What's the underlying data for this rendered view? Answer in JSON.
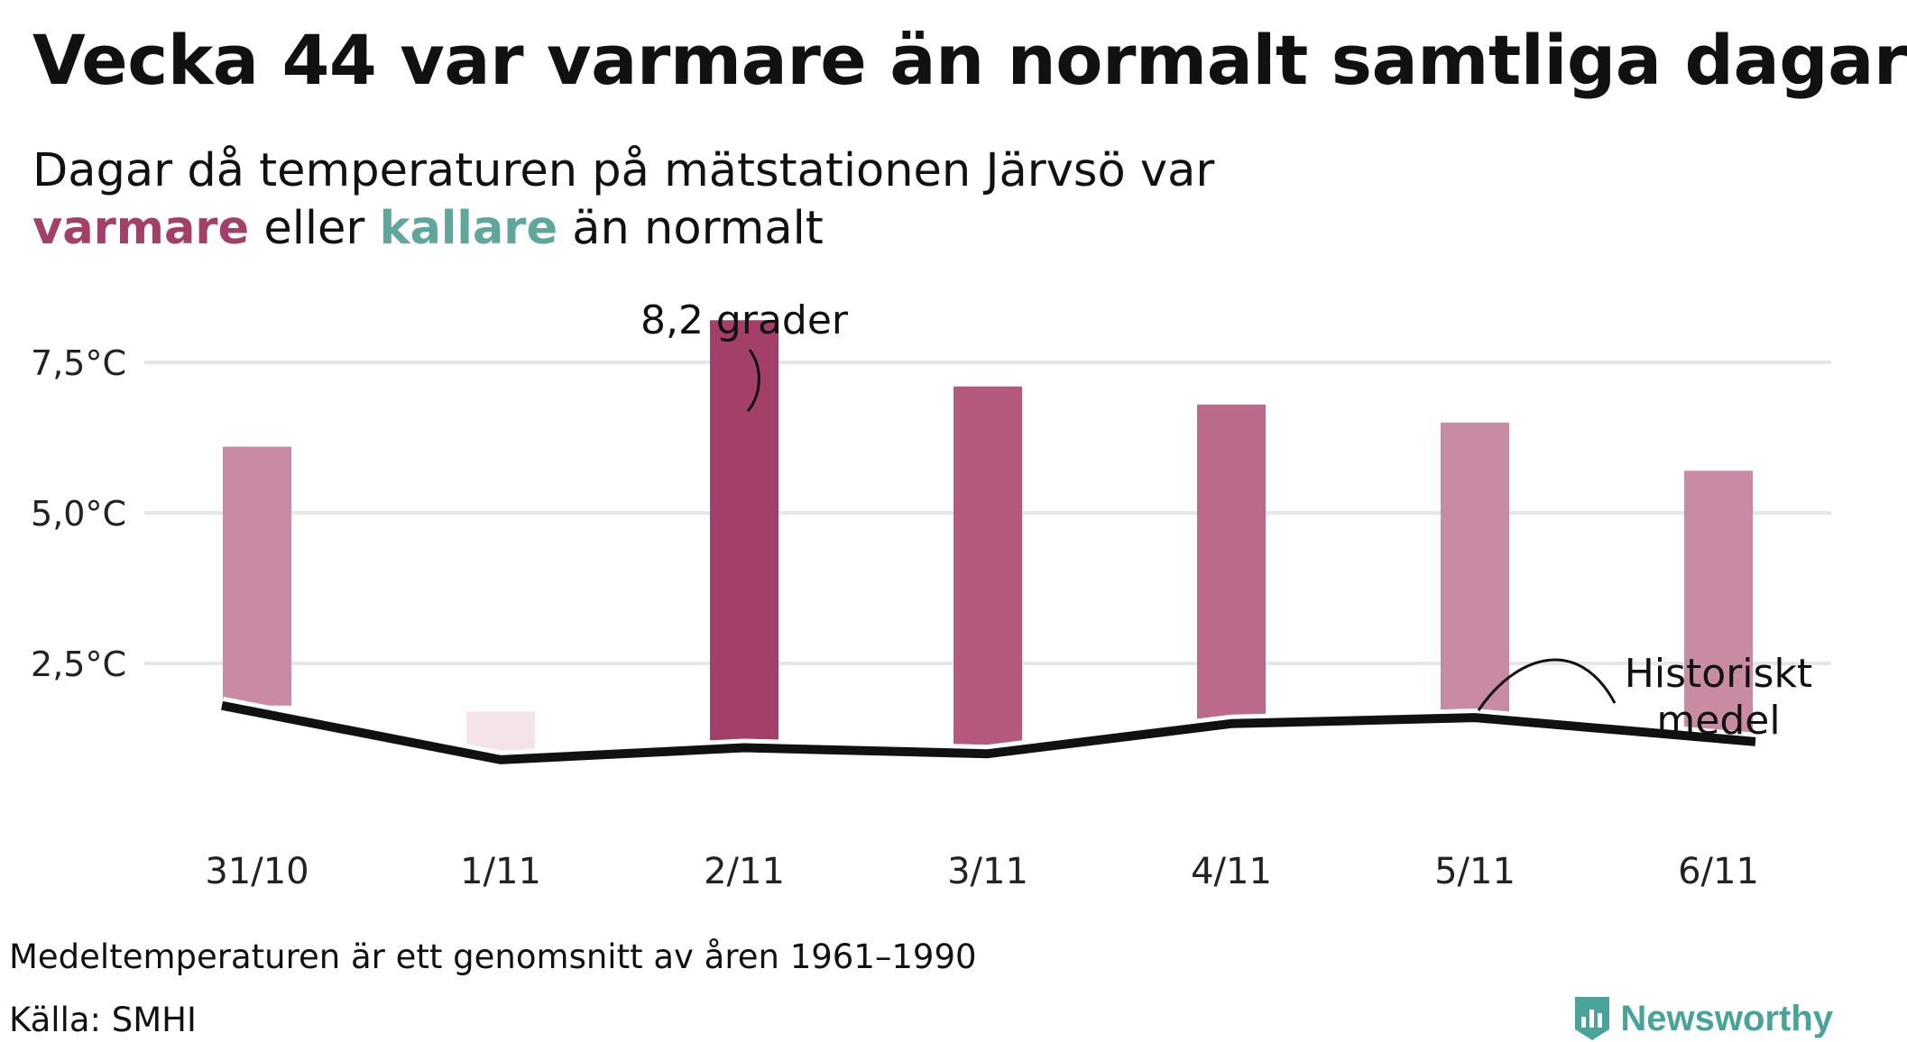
{
  "title": "Vecka 44 var varmare än normalt samtliga dagar",
  "subtitle": {
    "line1": "Dagar då temperaturen på mätstationen Järvsö var",
    "warm_word": "varmare",
    "between": " eller ",
    "cold_word": "kallare",
    "end": " än normalt"
  },
  "chart_data": {
    "type": "bar",
    "categories": [
      "31/10",
      "1/11",
      "2/11",
      "3/11",
      "4/11",
      "5/11",
      "6/11"
    ],
    "series": [
      {
        "values": [
          6.1,
          1.7,
          8.2,
          7.1,
          6.8,
          6.5,
          5.7
        ]
      },
      {
        "name": "Historiskt medel",
        "type": "line",
        "values": [
          1.8,
          0.9,
          1.1,
          1.0,
          1.5,
          1.6,
          1.2
        ]
      }
    ],
    "ylim": [
      0,
      9
    ],
    "yticks": [
      2.5,
      5.0,
      7.5
    ],
    "ytick_labels": [
      "2,5°C",
      "5,0°C",
      "7,5°C"
    ],
    "grid": true,
    "annotations": [
      {
        "text": "8,2 grader",
        "category": "2/11"
      },
      {
        "text": "Historiskt\nmedel",
        "category": "5/11"
      }
    ],
    "colors": {
      "warm_dark": "#a2406a",
      "warm_mid": "#b5597e",
      "warm_light": "#c98aa3",
      "warm_pale": "#f4e4ea",
      "cold": "#5fa79c",
      "line": "#111111",
      "grid": "#e6e6e6"
    }
  },
  "footer": {
    "note": "Medeltemperaturen är ett genomsnitt av åren 1961–1990",
    "source": "Källa: SMHI",
    "brand": "Newsworthy"
  },
  "icons": {
    "brand_logo": "newsworthy-logo-icon"
  }
}
